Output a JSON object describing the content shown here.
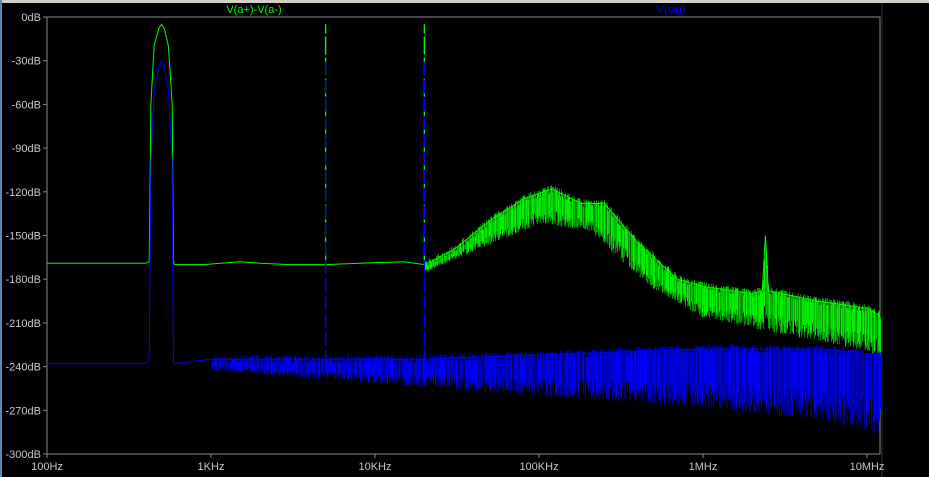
{
  "chart_data": {
    "type": "line",
    "x_scale": "log",
    "xlim": [
      100,
      12000000
    ],
    "ylim": [
      -300,
      0
    ],
    "x_ticks": [
      {
        "value": 100,
        "label": "100Hz"
      },
      {
        "value": 1000,
        "label": "1KHz"
      },
      {
        "value": 10000,
        "label": "10KHz"
      },
      {
        "value": 100000,
        "label": "100KHz"
      },
      {
        "value": 1000000,
        "label": "1MHz"
      },
      {
        "value": 10000000,
        "label": "10MHz"
      }
    ],
    "y_ticks": [
      {
        "value": 0,
        "label": "0dB"
      },
      {
        "value": -30,
        "label": "-30dB"
      },
      {
        "value": -60,
        "label": "-60dB"
      },
      {
        "value": -90,
        "label": "-90dB"
      },
      {
        "value": -120,
        "label": "-120dB"
      },
      {
        "value": -150,
        "label": "-150dB"
      },
      {
        "value": -180,
        "label": "-180dB"
      },
      {
        "value": -210,
        "label": "-210dB"
      },
      {
        "value": -240,
        "label": "-240dB"
      },
      {
        "value": -270,
        "label": "-270dB"
      },
      {
        "value": -300,
        "label": "-300dB"
      }
    ],
    "grid": false,
    "background": "#000000",
    "series": [
      {
        "name": "V(a+)-V(a-)",
        "color": "#00ff00",
        "points": [
          [
            100,
            -169
          ],
          [
            400,
            -169
          ],
          [
            420,
            -168
          ],
          [
            430,
            -60
          ],
          [
            450,
            -20
          ],
          [
            480,
            -8
          ],
          [
            500,
            -5
          ],
          [
            520,
            -8
          ],
          [
            550,
            -20
          ],
          [
            580,
            -60
          ],
          [
            590,
            -168
          ],
          [
            600,
            -170
          ],
          [
            900,
            -170
          ],
          [
            1500,
            -168
          ],
          [
            2000,
            -169
          ],
          [
            3000,
            -170
          ],
          [
            5000,
            -170
          ],
          [
            8000,
            -169
          ],
          [
            15000,
            -168
          ],
          [
            20000,
            -170
          ],
          [
            30000,
            -160
          ],
          [
            50000,
            -140
          ],
          [
            80000,
            -125
          ],
          [
            120000,
            -118
          ],
          [
            180000,
            -128
          ],
          [
            250000,
            -128
          ],
          [
            400000,
            -155
          ],
          [
            700000,
            -180
          ],
          [
            1000000,
            -185
          ],
          [
            2000000,
            -190
          ],
          [
            2300000,
            -188
          ],
          [
            2400000,
            -150
          ],
          [
            2500000,
            -188
          ],
          [
            5000000,
            -195
          ],
          [
            10000000,
            -200
          ],
          [
            12000000,
            -205
          ]
        ],
        "noise_floor": [
          [
            20000,
            -175
          ],
          [
            50000,
            -155
          ],
          [
            100000,
            -140
          ],
          [
            200000,
            -145
          ],
          [
            500000,
            -185
          ],
          [
            1000000,
            -205
          ],
          [
            3000000,
            -215
          ],
          [
            12000000,
            -230
          ]
        ],
        "spikes": [
          {
            "x": 5000,
            "y": -5,
            "floor": -170
          },
          {
            "x": 20000,
            "y": -5,
            "floor": -170
          }
        ]
      },
      {
        "name": "V(sig)",
        "color": "#0000ff",
        "points": [
          [
            100,
            -238
          ],
          [
            400,
            -238
          ],
          [
            420,
            -236
          ],
          [
            430,
            -100
          ],
          [
            450,
            -50
          ],
          [
            480,
            -35
          ],
          [
            500,
            -30
          ],
          [
            520,
            -35
          ],
          [
            550,
            -50
          ],
          [
            580,
            -100
          ],
          [
            590,
            -236
          ],
          [
            600,
            -238
          ],
          [
            1000,
            -235
          ],
          [
            5000,
            -235
          ],
          [
            20000,
            -235
          ],
          [
            100000,
            -232
          ],
          [
            1000000,
            -228
          ],
          [
            5000000,
            -228
          ],
          [
            12000000,
            -232
          ]
        ],
        "noise_floor": [
          [
            1000,
            -242
          ],
          [
            10000,
            -250
          ],
          [
            100000,
            -258
          ],
          [
            1000000,
            -265
          ],
          [
            5000000,
            -272
          ],
          [
            12000000,
            -282
          ]
        ],
        "spikes": [
          {
            "x": 5000,
            "y": -28,
            "floor": -238
          },
          {
            "x": 20000,
            "y": -30,
            "floor": -238
          }
        ]
      }
    ]
  }
}
